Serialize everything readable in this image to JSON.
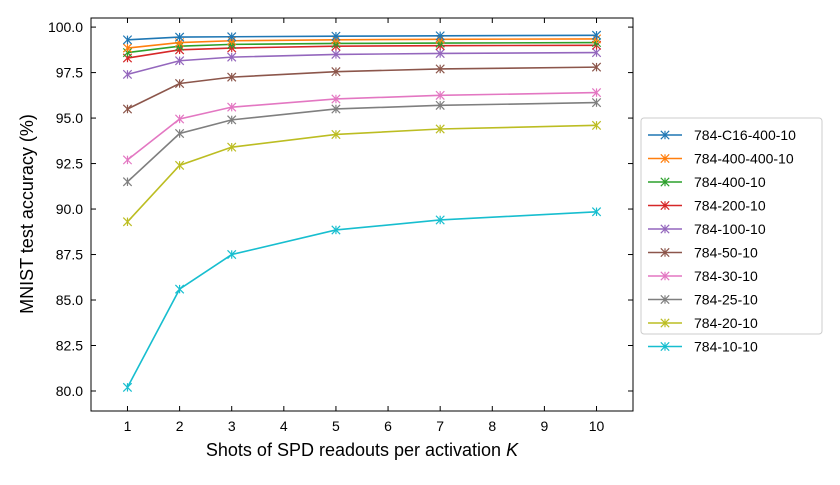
{
  "chart_data": {
    "type": "line",
    "xlabel": "Shots of SPD readouts per activation ",
    "xlabel_var": "K",
    "ylabel": "MNIST test accuracy (%)",
    "xlim": [
      0.3,
      10.7
    ],
    "ylim": [
      78.9,
      100.5
    ],
    "xticks": [
      "1",
      "2",
      "3",
      "4",
      "5",
      "6",
      "7",
      "8",
      "9",
      "10"
    ],
    "yticks": [
      "80.0",
      "82.5",
      "85.0",
      "87.5",
      "90.0",
      "92.5",
      "95.0",
      "97.5",
      "100.0"
    ],
    "grid": false,
    "legend_position": "right",
    "x": [
      1,
      2,
      3,
      5,
      7,
      10
    ],
    "series": [
      {
        "name": "784-C16-400-10",
        "color": "#1f77b4",
        "values": [
          99.3,
          99.45,
          99.47,
          99.5,
          99.52,
          99.55
        ]
      },
      {
        "name": "784-400-400-10",
        "color": "#ff7f0e",
        "values": [
          98.85,
          99.15,
          99.25,
          99.3,
          99.33,
          99.35
        ]
      },
      {
        "name": "784-400-10",
        "color": "#2ca02c",
        "values": [
          98.6,
          98.95,
          99.05,
          99.1,
          99.12,
          99.15
        ]
      },
      {
        "name": "784-200-10",
        "color": "#d62728",
        "values": [
          98.3,
          98.75,
          98.85,
          98.95,
          98.98,
          99.0
        ]
      },
      {
        "name": "784-100-10",
        "color": "#9467bd",
        "values": [
          97.4,
          98.15,
          98.35,
          98.5,
          98.55,
          98.6
        ]
      },
      {
        "name": "784-50-10",
        "color": "#8c564b",
        "values": [
          95.5,
          96.9,
          97.25,
          97.55,
          97.7,
          97.8
        ]
      },
      {
        "name": "784-30-10",
        "color": "#e377c2",
        "values": [
          92.7,
          94.95,
          95.6,
          96.05,
          96.25,
          96.4
        ]
      },
      {
        "name": "784-25-10",
        "color": "#7f7f7f",
        "values": [
          91.5,
          94.15,
          94.9,
          95.5,
          95.7,
          95.85
        ]
      },
      {
        "name": "784-20-10",
        "color": "#bcbd22",
        "values": [
          89.3,
          92.4,
          93.4,
          94.1,
          94.4,
          94.6
        ]
      },
      {
        "name": "784-10-10",
        "color": "#17becf",
        "values": [
          80.2,
          85.6,
          87.5,
          88.85,
          89.4,
          89.85
        ]
      }
    ]
  }
}
